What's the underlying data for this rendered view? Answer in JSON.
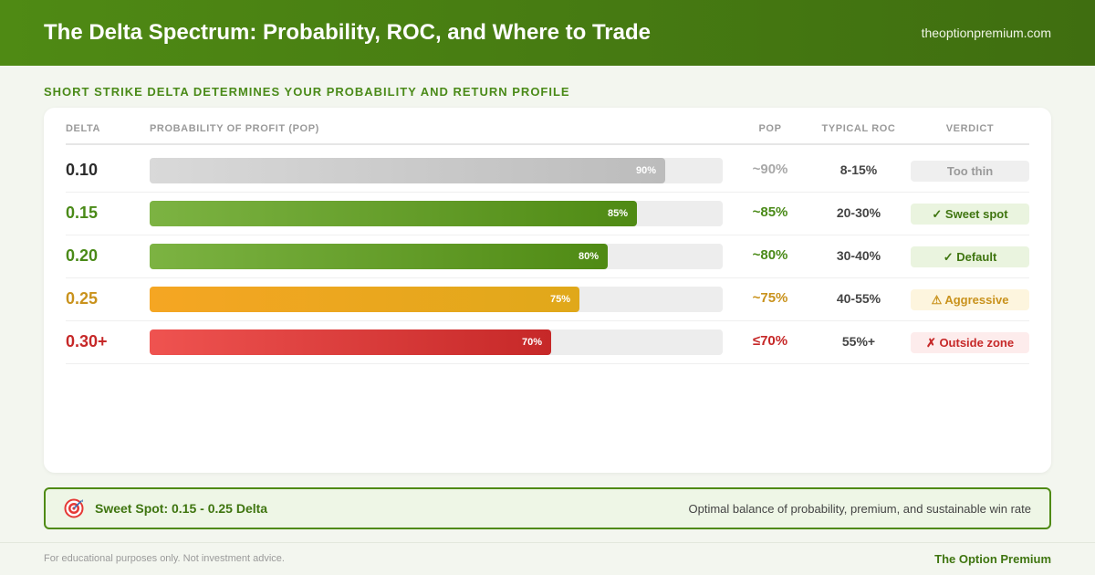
{
  "header": {
    "title": "The Delta Spectrum: Probability, ROC, and Where to Trade",
    "site": "theoptionpremium.com"
  },
  "subtitle": "SHORT STRIKE DELTA DETERMINES YOUR PROBABILITY AND RETURN PROFILE",
  "table": {
    "headers": {
      "delta": "DELTA",
      "probability": "PROBABILITY OF PROFIT (POP)",
      "pop": "POP",
      "roc": "TYPICAL ROC",
      "verdict": "VERDICT"
    }
  },
  "chart_data": {
    "type": "bar",
    "orientation": "horizontal",
    "xlim": [
      0,
      100
    ],
    "categories": [
      "0.10",
      "0.15",
      "0.20",
      "0.25",
      "0.30+"
    ],
    "values": [
      90,
      85,
      80,
      75,
      70
    ],
    "bar_labels": [
      "90%",
      "85%",
      "80%",
      "75%",
      "70%"
    ],
    "rows": [
      {
        "delta": "0.10",
        "value": 90,
        "bar_label": "90%",
        "pop": "~90%",
        "roc": "8-15%",
        "verdict": "Too thin",
        "colors": {
          "delta": "#2b2b2b",
          "pop": "#a8a8a8",
          "fill_start": "#d9d9d9",
          "fill_end": "#bcbcbc",
          "verdict_bg": "#efefef",
          "verdict_text": "#9a9a9a"
        }
      },
      {
        "delta": "0.15",
        "value": 85,
        "bar_label": "85%",
        "pop": "~85%",
        "roc": "20-30%",
        "verdict": "✓ Sweet spot",
        "colors": {
          "delta": "#4a8a18",
          "pop": "#4a8a18",
          "fill_start": "#7cb342",
          "fill_end": "#4f8a14",
          "verdict_bg": "#eaf4df",
          "verdict_text": "#3f7510"
        }
      },
      {
        "delta": "0.20",
        "value": 80,
        "bar_label": "80%",
        "pop": "~80%",
        "roc": "30-40%",
        "verdict": "✓ Default",
        "colors": {
          "delta": "#4a8a18",
          "pop": "#4a8a18",
          "fill_start": "#7cb342",
          "fill_end": "#4f8a14",
          "verdict_bg": "#eaf4df",
          "verdict_text": "#3f7510"
        }
      },
      {
        "delta": "0.25",
        "value": 75,
        "bar_label": "75%",
        "pop": "~75%",
        "roc": "40-55%",
        "verdict": "⚠ Aggressive",
        "colors": {
          "delta": "#c9921c",
          "pop": "#c9921c",
          "fill_start": "#f5a623",
          "fill_end": "#e0a81a",
          "verdict_bg": "#fdf5de",
          "verdict_text": "#c9921c"
        }
      },
      {
        "delta": "0.30+",
        "value": 70,
        "bar_label": "70%",
        "pop": "≤70%",
        "roc": "55%+",
        "verdict": "✗ Outside zone",
        "colors": {
          "delta": "#c62828",
          "pop": "#c62828",
          "fill_start": "#ef5350",
          "fill_end": "#c62828",
          "verdict_bg": "#fdecec",
          "verdict_text": "#c62828"
        }
      }
    ]
  },
  "sweet_spot": {
    "icon": "target-icon",
    "title": "Sweet Spot: 0.15 - 0.25 Delta",
    "description": "Optimal balance of probability, premium, and sustainable win rate"
  },
  "footer": {
    "disclaimer": "For educational purposes only. Not investment advice.",
    "brand": "The Option Premium"
  }
}
